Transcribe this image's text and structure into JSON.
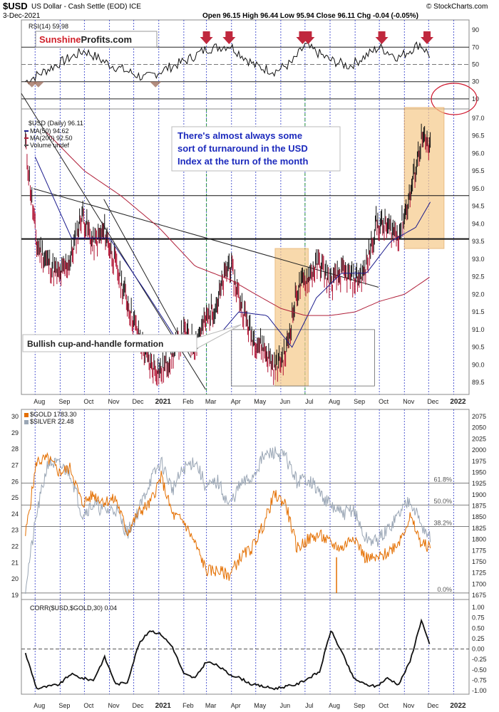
{
  "header": {
    "symbol": "$USD",
    "name": "US Dollar - Cash Settle (EOD) ICE",
    "date": "3-Dec-2021",
    "source": "© StockCharts.com",
    "ohlc": "Open 96.15  High 96.44  Low 95.94  Close 96.11  Chg -0.04 (-0.05%)"
  },
  "logo": {
    "part1": "Sunshine",
    "part2": "Profits.com"
  },
  "chart_data": [
    {
      "type": "line",
      "panel": "rsi",
      "legend": "RSI(14) 59.98",
      "ylim": [
        0,
        100
      ],
      "yticks": [
        10,
        30,
        50,
        70,
        90
      ],
      "hlines": [
        10,
        50,
        70
      ],
      "x": [
        "2021-07-26",
        "2021-08-16",
        "2021-09-06",
        "2021-09-27",
        "2021-10-18",
        "2021-11-08",
        "2021-11-29",
        "2020-12-20",
        "2021-01-10",
        "2021-01-31",
        "2021-02-21",
        "2021-03-14",
        "2021-04-04",
        "2021-04-25",
        "2021-05-16",
        "2021-06-06",
        "2021-06-27",
        "2021-07-18",
        "2021-08-08",
        "2021-08-29",
        "2021-09-19",
        "2021-10-10",
        "2021-10-31",
        "2021-11-21",
        "2021-12-03"
      ],
      "values": [
        30,
        32,
        52,
        66,
        52,
        48,
        42,
        34,
        45,
        55,
        68,
        72,
        62,
        48,
        42,
        50,
        72,
        60,
        48,
        58,
        70,
        60,
        62,
        74,
        60
      ],
      "arrows": [
        "2021-03-01",
        "2021-03-29",
        "2021-06-28",
        "2021-07-05",
        "2021-10-04",
        "2021-11-29"
      ]
    },
    {
      "type": "line",
      "panel": "usd",
      "title": "$USD (Daily) 96.11",
      "legend": [
        {
          "name": "MA(50) 94.62",
          "color": "#1a1a8c"
        },
        {
          "name": "MA(200) 92.50",
          "color": "#b0203a"
        },
        {
          "name": "Volume undef",
          "color": "#555555"
        }
      ],
      "ylim": [
        89.2,
        97.2
      ],
      "yticks": [
        89.5,
        90.0,
        90.5,
        91.0,
        91.5,
        92.0,
        92.5,
        93.0,
        93.5,
        94.0,
        94.5,
        95.0,
        95.5,
        96.0,
        96.5,
        97.0
      ],
      "hlines": [
        93.57,
        94.8
      ],
      "series": [
        {
          "name": "$USD",
          "x": [
            "2020-07-20",
            "2020-08-03",
            "2020-08-17",
            "2020-08-31",
            "2020-09-14",
            "2020-09-28",
            "2020-10-12",
            "2020-10-26",
            "2020-11-09",
            "2020-11-23",
            "2020-12-07",
            "2020-12-21",
            "2021-01-04",
            "2021-01-18",
            "2021-02-01",
            "2021-02-15",
            "2021-03-01",
            "2021-03-15",
            "2021-03-29",
            "2021-04-12",
            "2021-04-26",
            "2021-05-10",
            "2021-05-24",
            "2021-06-07",
            "2021-06-21",
            "2021-07-05",
            "2021-07-19",
            "2021-08-02",
            "2021-08-16",
            "2021-08-30",
            "2021-09-13",
            "2021-09-27",
            "2021-10-11",
            "2021-10-25",
            "2021-11-08",
            "2021-11-22",
            "2021-12-03"
          ],
          "values": [
            96.3,
            93.4,
            92.9,
            92.5,
            93.0,
            94.3,
            93.4,
            93.8,
            92.8,
            91.8,
            90.8,
            90.0,
            89.8,
            90.3,
            90.9,
            90.6,
            91.3,
            91.8,
            92.9,
            91.8,
            90.8,
            90.5,
            89.9,
            90.3,
            92.1,
            92.5,
            92.9,
            92.3,
            92.6,
            92.4,
            92.6,
            94.0,
            93.9,
            93.7,
            94.8,
            96.4,
            96.1
          ]
        },
        {
          "name": "MA(50)",
          "x": [
            "2020-08-01",
            "2020-09-15",
            "2020-11-01",
            "2020-12-15",
            "2021-02-01",
            "2021-03-15",
            "2021-04-10",
            "2021-05-15",
            "2021-06-15",
            "2021-07-15",
            "2021-08-15",
            "2021-09-15",
            "2021-10-15",
            "2021-11-15",
            "2021-12-03"
          ],
          "values": [
            95.9,
            93.6,
            93.6,
            92.1,
            90.4,
            90.8,
            91.5,
            91.4,
            90.5,
            91.9,
            92.6,
            92.6,
            93.5,
            93.9,
            94.62
          ]
        },
        {
          "name": "MA(200)",
          "x": [
            "2020-08-15",
            "2020-10-01",
            "2020-11-15",
            "2021-01-01",
            "2021-02-15",
            "2021-04-01",
            "2021-05-01",
            "2021-06-01",
            "2021-07-01",
            "2021-08-01",
            "2021-09-01",
            "2021-10-01",
            "2021-11-01",
            "2021-12-03"
          ],
          "values": [
            96.6,
            95.5,
            94.8,
            93.9,
            92.8,
            92.4,
            92.0,
            91.6,
            91.4,
            91.4,
            91.5,
            91.8,
            92.0,
            92.5
          ]
        }
      ],
      "annotations": [
        {
          "text": "There's almost always some sort of turnaround in the USD Index at the turn of the month"
        },
        {
          "text": "Bullish cup-and-handle formation"
        }
      ]
    },
    {
      "type": "line",
      "panel": "gold-silver",
      "series": [
        {
          "name": "$GOLD 1783.30",
          "color": "#e46f00",
          "x": [
            "2020-07-20",
            "2020-08-03",
            "2020-08-17",
            "2020-08-31",
            "2020-09-14",
            "2020-09-28",
            "2020-10-12",
            "2020-10-26",
            "2020-11-09",
            "2020-11-23",
            "2020-12-07",
            "2020-12-21",
            "2021-01-04",
            "2021-01-18",
            "2021-02-01",
            "2021-02-15",
            "2021-03-01",
            "2021-03-15",
            "2021-03-29",
            "2021-04-12",
            "2021-04-26",
            "2021-05-10",
            "2021-05-24",
            "2021-06-07",
            "2021-06-21",
            "2021-07-05",
            "2021-07-19",
            "2021-08-02",
            "2021-08-16",
            "2021-08-30",
            "2021-09-13",
            "2021-09-27",
            "2021-10-11",
            "2021-10-25",
            "2021-11-08",
            "2021-11-22",
            "2021-12-03"
          ],
          "values": [
            1810,
            1975,
            1980,
            1950,
            1960,
            1880,
            1900,
            1885,
            1890,
            1815,
            1860,
            1880,
            1940,
            1855,
            1840,
            1790,
            1730,
            1730,
            1720,
            1760,
            1780,
            1830,
            1900,
            1880,
            1780,
            1800,
            1810,
            1790,
            1780,
            1810,
            1760,
            1755,
            1770,
            1795,
            1850,
            1790,
            1783.3
          ]
        },
        {
          "name": "$SILVER 22.48",
          "color": "#9aa6b5",
          "x": [
            "2020-07-20",
            "2020-08-03",
            "2020-08-17",
            "2020-08-31",
            "2020-09-14",
            "2020-09-28",
            "2020-10-12",
            "2020-10-26",
            "2020-11-09",
            "2020-11-23",
            "2020-12-07",
            "2020-12-21",
            "2021-01-04",
            "2021-01-18",
            "2021-02-01",
            "2021-02-15",
            "2021-03-01",
            "2021-03-15",
            "2021-03-29",
            "2021-04-12",
            "2021-04-26",
            "2021-05-10",
            "2021-05-24",
            "2021-06-07",
            "2021-06-21",
            "2021-07-05",
            "2021-07-19",
            "2021-08-02",
            "2021-08-16",
            "2021-08-30",
            "2021-09-13",
            "2021-09-27",
            "2021-10-11",
            "2021-10-25",
            "2021-11-08",
            "2021-11-22",
            "2021-12-03"
          ],
          "values": [
            19.5,
            24.0,
            27.2,
            27.0,
            26.5,
            24.0,
            24.6,
            24.2,
            24.3,
            22.8,
            24.2,
            26.0,
            27.2,
            25.5,
            26.8,
            27.3,
            25.6,
            26.0,
            24.5,
            25.8,
            26.2,
            27.5,
            27.8,
            27.5,
            26.0,
            26.2,
            25.3,
            24.5,
            24.0,
            24.3,
            22.5,
            22.3,
            23.0,
            24.0,
            25.0,
            23.3,
            22.48
          ]
        }
      ],
      "ylim_left": [
        19,
        30
      ],
      "yticks_left": [
        19,
        20,
        21,
        22,
        23,
        24,
        25,
        26,
        27,
        28,
        29,
        30
      ],
      "ylim_right": [
        1675,
        2075
      ],
      "yticks_right": [
        1675,
        1700,
        1725,
        1750,
        1775,
        1800,
        1825,
        1850,
        1875,
        1900,
        1925,
        1950,
        1975,
        2000,
        2025,
        2050,
        2075
      ],
      "fib_levels": [
        {
          "label": "61.8%",
          "value": 1926
        },
        {
          "label": "50.0%",
          "value": 1877
        },
        {
          "label": "38.2%",
          "value": 1829
        },
        {
          "label": "0.0%",
          "value": 1680
        }
      ]
    },
    {
      "type": "line",
      "panel": "correlation",
      "legend": "CORR($USD,$GOLD,30) 0.04",
      "ylim": [
        -1.0,
        1.0
      ],
      "yticks": [
        -1.0,
        -0.75,
        -0.5,
        -0.25,
        0.0,
        0.25,
        0.5,
        0.75,
        1.0
      ],
      "hlines": [
        0.0
      ],
      "x": [
        "2020-07-20",
        "2020-08-03",
        "2020-08-17",
        "2020-08-31",
        "2020-09-14",
        "2020-09-28",
        "2020-10-12",
        "2020-10-26",
        "2020-11-09",
        "2020-11-23",
        "2020-12-07",
        "2020-12-21",
        "2021-01-04",
        "2021-01-18",
        "2021-02-01",
        "2021-02-15",
        "2021-03-01",
        "2021-03-15",
        "2021-03-29",
        "2021-04-12",
        "2021-04-26",
        "2021-05-10",
        "2021-05-24",
        "2021-06-07",
        "2021-06-21",
        "2021-07-05",
        "2021-07-19",
        "2021-08-02",
        "2021-08-16",
        "2021-08-30",
        "2021-09-13",
        "2021-09-27",
        "2021-10-11",
        "2021-10-25",
        "2021-11-08",
        "2021-11-22",
        "2021-12-03"
      ],
      "values": [
        -0.1,
        -0.95,
        -0.9,
        -0.85,
        -0.6,
        -0.7,
        -0.75,
        -0.2,
        -0.85,
        -0.8,
        0.1,
        0.45,
        0.35,
        0.05,
        -0.6,
        -0.7,
        -0.3,
        -0.4,
        -0.6,
        -0.7,
        -0.85,
        -0.9,
        -0.95,
        -0.9,
        -0.85,
        -0.7,
        -0.55,
        0.45,
        -0.1,
        -0.7,
        -0.85,
        -0.9,
        -0.7,
        -0.85,
        -0.3,
        0.7,
        0.04
      ]
    }
  ],
  "x_axis": {
    "labels": [
      "Aug",
      "Sep",
      "Oct",
      "Nov",
      "Dec",
      "2021",
      "Feb",
      "Mar",
      "Apr",
      "May",
      "Jun",
      "Jul",
      "Aug",
      "Sep",
      "Oct",
      "Nov",
      "Dec",
      "2022"
    ],
    "dates": [
      "2020-08-01",
      "2020-09-01",
      "2020-10-01",
      "2020-11-01",
      "2020-12-01",
      "2021-01-01",
      "2021-02-01",
      "2021-03-01",
      "2021-04-01",
      "2021-05-01",
      "2021-06-01",
      "2021-07-01",
      "2021-08-01",
      "2021-09-01",
      "2021-10-01",
      "2021-11-01",
      "2021-12-01",
      "2022-01-01"
    ]
  },
  "colors": {
    "usd_up": "#111111",
    "usd_down": "#b01030",
    "box_fill": "#f6c98a",
    "box_edge": "#e0a050",
    "month_line": "#2a37c8",
    "arrow": "#c0283d"
  }
}
